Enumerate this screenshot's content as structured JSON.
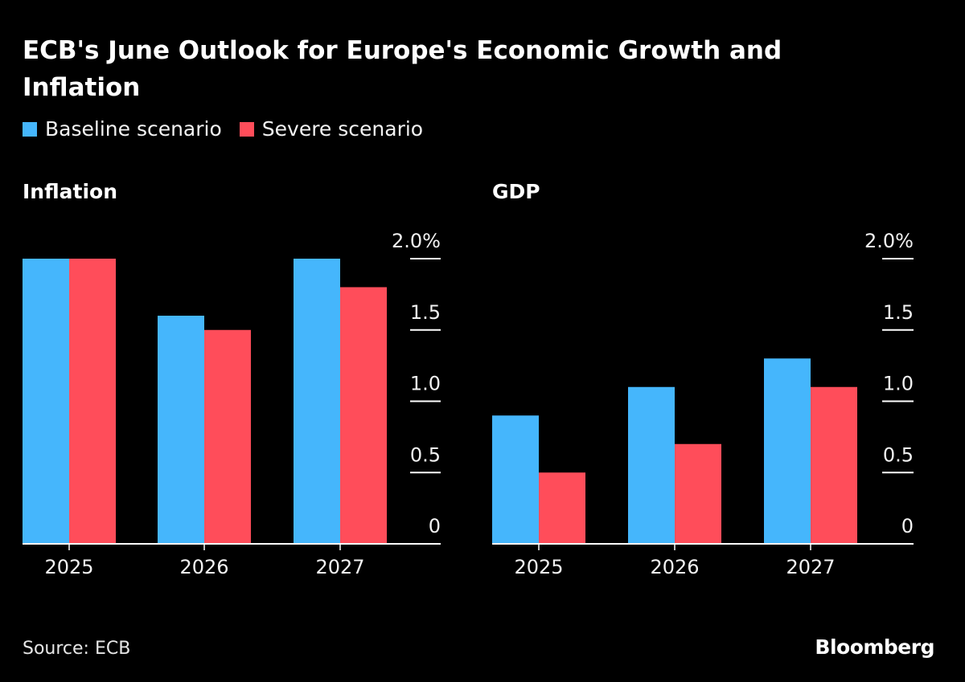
{
  "chart_data": [
    {
      "type": "bar",
      "panel": "Inflation",
      "title": "Inflation",
      "categories": [
        "2025",
        "2026",
        "2027"
      ],
      "series": [
        {
          "name": "Baseline scenario",
          "color": "#45B6FC",
          "values": [
            2.0,
            1.6,
            2.0
          ]
        },
        {
          "name": "Severe scenario",
          "color": "#FF4D5A",
          "values": [
            2.0,
            1.5,
            1.8
          ]
        }
      ],
      "ylim": [
        0,
        2.0
      ],
      "yticks": [
        0,
        0.5,
        1.0,
        1.5,
        2.0
      ],
      "ytick_labels": [
        "0",
        "0.5",
        "1.0",
        "1.5",
        "2.0%"
      ],
      "y_axis_side": "right",
      "xlabel": "",
      "ylabel": ""
    },
    {
      "type": "bar",
      "panel": "GDP",
      "title": "GDP",
      "categories": [
        "2025",
        "2026",
        "2027"
      ],
      "series": [
        {
          "name": "Baseline scenario",
          "color": "#45B6FC",
          "values": [
            0.9,
            1.1,
            1.3
          ]
        },
        {
          "name": "Severe scenario",
          "color": "#FF4D5A",
          "values": [
            0.5,
            0.7,
            1.1
          ]
        }
      ],
      "ylim": [
        0,
        2.0
      ],
      "yticks": [
        0,
        0.5,
        1.0,
        1.5,
        2.0
      ],
      "ytick_labels": [
        "0",
        "0.5",
        "1.0",
        "1.5",
        "2.0%"
      ],
      "y_axis_side": "right",
      "xlabel": "",
      "ylabel": ""
    }
  ],
  "header": {
    "title": "ECB's June Outlook for Europe's Economic Growth and Inflation"
  },
  "legend": [
    {
      "label": "Baseline scenario",
      "color": "#45B6FC"
    },
    {
      "label": "Severe scenario",
      "color": "#FF4D5A"
    }
  ],
  "panels": {
    "left_title": "Inflation",
    "right_title": "GDP"
  },
  "footer": {
    "source": "Source: ECB",
    "brand": "Bloomberg"
  }
}
